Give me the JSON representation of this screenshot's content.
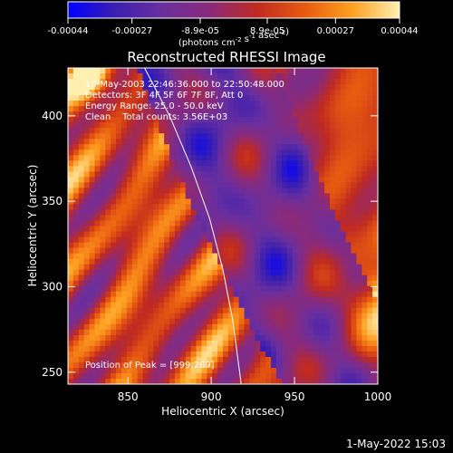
{
  "colorbar": {
    "tick_labels": [
      "-0.00044",
      "-0.00027",
      "-8.9e-05",
      "8.9e-05",
      "0.00027",
      "0.00044"
    ],
    "tick_values": [
      -0.00044,
      -0.00027,
      -8.9e-05,
      8.9e-05,
      0.00027,
      0.00044
    ],
    "range": [
      -0.00044,
      0.00044
    ],
    "units": "(photons cm",
    "units_parts": [
      {
        "text": "(photons cm",
        "sup": false
      },
      {
        "text": "-2",
        "sup": true
      },
      {
        "text": " s",
        "sup": false
      },
      {
        "text": "-1",
        "sup": true
      },
      {
        "text": " asec",
        "sup": false
      },
      {
        "text": "-2",
        "sup": true
      },
      {
        "text": ")",
        "sup": false
      }
    ],
    "colors": [
      "#0000ff",
      "#3a1fb0",
      "#6a2f9e",
      "#8a2a7a",
      "#c02a20",
      "#e85a10",
      "#ffa020",
      "#fff0b0"
    ]
  },
  "chart_data": {
    "type": "heatmap",
    "title": "Reconstructed RHESSI Image",
    "xlabel": "Heliocentric X (arcsec)",
    "ylabel": "Heliocentric Y (arcsec)",
    "xlim": [
      814,
      1000
    ],
    "ylim": [
      243,
      428
    ],
    "x_ticks": [
      850,
      900,
      950,
      1000
    ],
    "y_ticks": [
      250,
      300,
      350,
      400
    ],
    "peak": {
      "x": 999,
      "y": 289
    },
    "limb_curve": [
      [
        860,
        428
      ],
      [
        875,
        400
      ],
      [
        888,
        370
      ],
      [
        899,
        340
      ],
      [
        907,
        310
      ],
      [
        913,
        280
      ],
      [
        918,
        243
      ]
    ]
  },
  "annotations": {
    "time_range": "10-May-2003 22:46:36.000 to 22:50:48.000",
    "detectors": "Detectors: 3F 4F 5F 6F 7F 8F, Att 0",
    "energy": "Energy Range: 25.0 - 50.0 keV",
    "clean": "Clean    Total counts: 3.56E+03",
    "peak_label": "Position of Peak = [999,289]"
  },
  "footer": {
    "date": "1-May-2022 15:03"
  }
}
